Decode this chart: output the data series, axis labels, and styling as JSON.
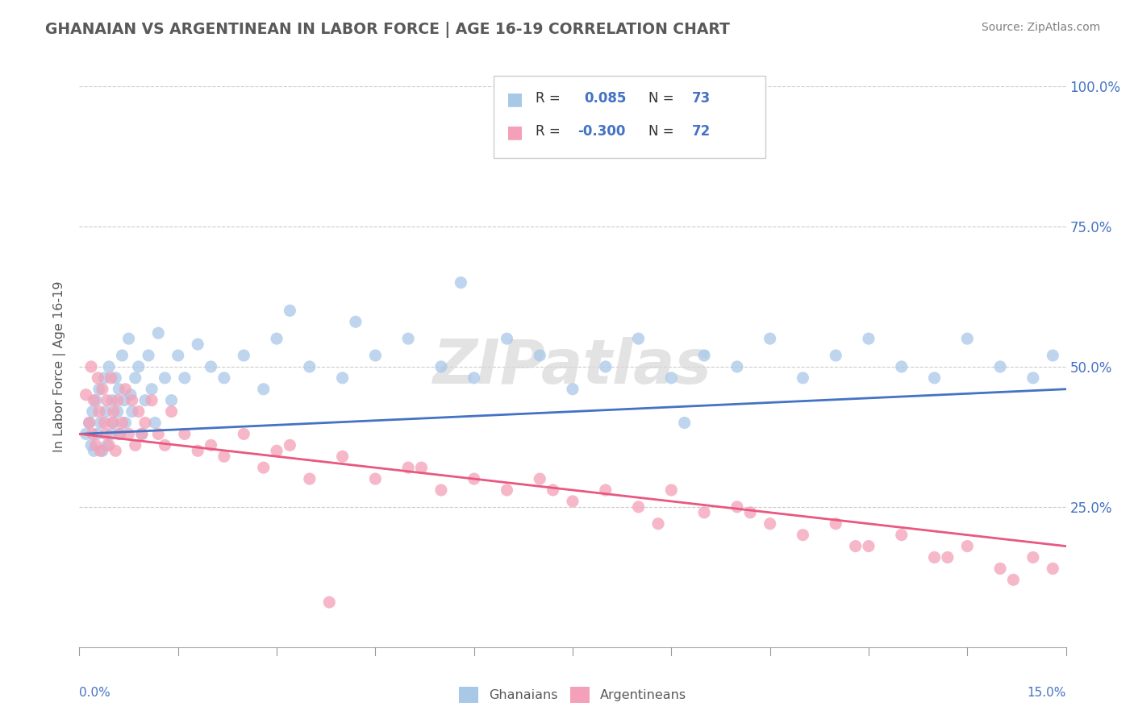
{
  "title": "GHANAIAN VS ARGENTINEAN IN LABOR FORCE | AGE 16-19 CORRELATION CHART",
  "source_text": "Source: ZipAtlas.com",
  "ylabel": "In Labor Force | Age 16-19",
  "xmin": 0.0,
  "xmax": 15.0,
  "ymin": 0.0,
  "ymax": 100.0,
  "yticks": [
    25.0,
    50.0,
    75.0,
    100.0
  ],
  "blue_color": "#A8C8E8",
  "pink_color": "#F4A0B8",
  "blue_line_color": "#4472C4",
  "pink_line_color": "#E85880",
  "title_color": "#595959",
  "source_color": "#808080",
  "background_color": "#FFFFFF",
  "grid_color": "#CCCCCC",
  "axis_label_color": "#4472C4",
  "blue_trend_x0": 0.0,
  "blue_trend_y0": 38.0,
  "blue_trend_x1": 15.0,
  "blue_trend_y1": 46.0,
  "pink_trend_x0": 0.0,
  "pink_trend_y0": 38.0,
  "pink_trend_x1": 15.0,
  "pink_trend_y1": 18.0,
  "ghanaians_x": [
    0.1,
    0.15,
    0.18,
    0.2,
    0.22,
    0.25,
    0.27,
    0.3,
    0.32,
    0.35,
    0.38,
    0.4,
    0.42,
    0.45,
    0.48,
    0.5,
    0.52,
    0.55,
    0.58,
    0.6,
    0.62,
    0.65,
    0.68,
    0.7,
    0.75,
    0.78,
    0.8,
    0.85,
    0.9,
    0.95,
    1.0,
    1.05,
    1.1,
    1.15,
    1.2,
    1.3,
    1.4,
    1.5,
    1.6,
    1.8,
    2.0,
    2.2,
    2.5,
    2.8,
    3.0,
    3.5,
    4.0,
    4.5,
    5.0,
    5.5,
    6.0,
    6.5,
    7.0,
    7.5,
    8.0,
    8.5,
    9.0,
    9.5,
    10.0,
    10.5,
    11.0,
    11.5,
    12.0,
    12.5,
    13.0,
    13.5,
    14.0,
    14.5,
    14.8,
    3.2,
    4.2,
    5.8,
    9.2
  ],
  "ghanaians_y": [
    38,
    40,
    36,
    42,
    35,
    44,
    38,
    46,
    40,
    35,
    48,
    42,
    36,
    50,
    38,
    44,
    40,
    48,
    42,
    46,
    38,
    52,
    44,
    40,
    55,
    45,
    42,
    48,
    50,
    38,
    44,
    52,
    46,
    40,
    56,
    48,
    44,
    52,
    48,
    54,
    50,
    48,
    52,
    46,
    55,
    50,
    48,
    52,
    55,
    50,
    48,
    55,
    52,
    46,
    50,
    55,
    48,
    52,
    50,
    55,
    48,
    52,
    55,
    50,
    48,
    55,
    50,
    48,
    52,
    60,
    58,
    65,
    40
  ],
  "argentineans_x": [
    0.1,
    0.15,
    0.18,
    0.2,
    0.22,
    0.25,
    0.28,
    0.3,
    0.32,
    0.35,
    0.38,
    0.4,
    0.42,
    0.45,
    0.48,
    0.5,
    0.52,
    0.55,
    0.58,
    0.6,
    0.65,
    0.7,
    0.75,
    0.8,
    0.85,
    0.9,
    0.95,
    1.0,
    1.1,
    1.2,
    1.3,
    1.4,
    1.6,
    1.8,
    2.0,
    2.2,
    2.5,
    2.8,
    3.0,
    3.5,
    4.0,
    4.5,
    5.0,
    5.5,
    6.0,
    6.5,
    7.0,
    7.5,
    8.0,
    8.5,
    9.0,
    9.5,
    10.0,
    10.5,
    11.0,
    11.5,
    12.0,
    12.5,
    13.0,
    13.5,
    14.0,
    14.5,
    14.8,
    3.2,
    5.2,
    7.2,
    8.8,
    10.2,
    11.8,
    13.2,
    14.2,
    3.8
  ],
  "argentineans_y": [
    45,
    40,
    50,
    38,
    44,
    36,
    48,
    42,
    35,
    46,
    40,
    38,
    44,
    36,
    48,
    40,
    42,
    35,
    44,
    38,
    40,
    46,
    38,
    44,
    36,
    42,
    38,
    40,
    44,
    38,
    36,
    42,
    38,
    35,
    36,
    34,
    38,
    32,
    35,
    30,
    34,
    30,
    32,
    28,
    30,
    28,
    30,
    26,
    28,
    25,
    28,
    24,
    25,
    22,
    20,
    22,
    18,
    20,
    16,
    18,
    14,
    16,
    14,
    36,
    32,
    28,
    22,
    24,
    18,
    16,
    12,
    8
  ]
}
